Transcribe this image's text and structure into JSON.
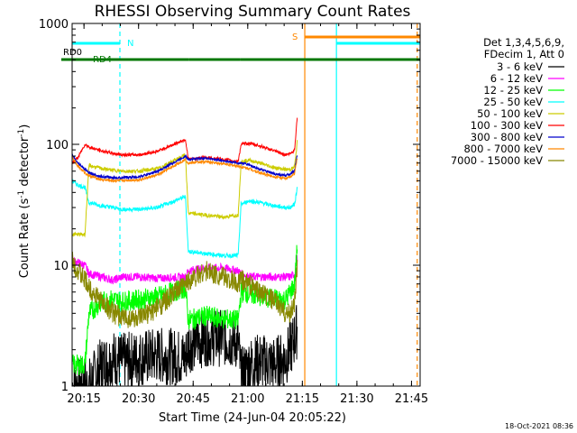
{
  "chart_data": {
    "type": "line",
    "title": "RHESSI Observing Summary Count Rates",
    "xlabel": "Start Time (24-Jun-04 20:05:22)",
    "ylabel": "Count Rate (s⁻¹ detector⁻¹)",
    "ylabel_parts": [
      "Count Rate (s",
      "-1",
      " detector",
      "-1",
      ")"
    ],
    "yscale": "log",
    "ylim": [
      1,
      1000
    ],
    "xlim_min": [
      6.37,
      102.0
    ],
    "x_unit": "minutes after 20:05:22",
    "xticks": [
      {
        "label": "20:15",
        "min": 9.63
      },
      {
        "label": "20:30",
        "min": 24.63
      },
      {
        "label": "20:45",
        "min": 39.63
      },
      {
        "label": "21:00",
        "min": 54.63
      },
      {
        "label": "21:15",
        "min": 69.63
      },
      {
        "label": "21:30",
        "min": 84.63
      },
      {
        "label": "21:45",
        "min": 99.63
      }
    ],
    "yticks": [
      {
        "label": "1",
        "value": 1
      },
      {
        "label": "10",
        "value": 10
      },
      {
        "label": "100",
        "value": 100
      },
      {
        "label": "1000",
        "value": 1000
      }
    ],
    "legend_header": [
      "Det 1,3,4,5,6,9,",
      "FDecim 1, Att 0"
    ],
    "legend_position": "right",
    "series": [
      {
        "name": "3 - 6 keV",
        "color": "#000000",
        "x": [
          6.4,
          8.0,
          9.9,
          11.0,
          14.5,
          17.8,
          20.0,
          25.0,
          30.0,
          37.5,
          38.3,
          43.0,
          48.0,
          52.0,
          52.8,
          55.0,
          58.0,
          62.0,
          65.0,
          66.3,
          67.5,
          68.3
        ],
        "y": [
          1.0,
          1.0,
          1.0,
          1.0,
          1.5,
          1.7,
          1.6,
          1.7,
          1.8,
          1.7,
          2.2,
          2.5,
          2.5,
          2.3,
          1.2,
          1.5,
          1.6,
          1.5,
          1.7,
          2.0,
          2.5,
          3.0
        ]
      },
      {
        "name": "6 - 12 keV",
        "color": "#ff00ff",
        "x": [
          6.4,
          8.0,
          9.9,
          11.0,
          14.5,
          17.8,
          20.0,
          25.0,
          30.0,
          37.5,
          38.3,
          43.0,
          48.0,
          52.0,
          52.8,
          55.0,
          58.0,
          62.0,
          65.0,
          66.3,
          67.5,
          68.3
        ],
        "y": [
          11.0,
          10.5,
          10.0,
          8.5,
          8.0,
          7.5,
          8.0,
          8.0,
          7.8,
          8.0,
          9.0,
          9.5,
          9.5,
          9.0,
          8.5,
          8.0,
          8.0,
          8.0,
          8.0,
          8.0,
          8.5,
          12.0
        ]
      },
      {
        "name": "12 - 25 keV",
        "color": "#00ff00",
        "x": [
          6.4,
          8.0,
          9.9,
          11.0,
          14.5,
          17.8,
          20.0,
          25.0,
          30.0,
          37.5,
          38.3,
          43.0,
          48.0,
          52.0,
          52.8,
          55.0,
          58.0,
          62.0,
          65.0,
          66.3,
          67.5,
          68.3
        ],
        "y": [
          1.5,
          1.5,
          1.5,
          4.0,
          5.0,
          5.2,
          5.0,
          5.2,
          5.5,
          6.5,
          3.5,
          3.8,
          3.6,
          3.5,
          6.0,
          5.8,
          5.5,
          5.3,
          5.2,
          6.0,
          7.0,
          15.0
        ]
      },
      {
        "name": "25 - 50 keV",
        "color": "#00ffff",
        "x": [
          6.4,
          8.0,
          9.9,
          11.0,
          14.5,
          17.8,
          20.0,
          25.0,
          30.0,
          37.5,
          38.3,
          43.0,
          48.0,
          52.0,
          52.8,
          55.0,
          58.0,
          62.0,
          65.0,
          66.3,
          67.5,
          68.3
        ],
        "y": [
          50.0,
          46.0,
          44.0,
          33.0,
          31.0,
          30.0,
          29.0,
          29.0,
          30.0,
          37.0,
          13.0,
          12.5,
          12.0,
          12.0,
          32.0,
          34.0,
          33.0,
          31.0,
          30.0,
          30.0,
          32.0,
          45.0
        ]
      },
      {
        "name": "50 - 100 keV",
        "color": "#cccc00",
        "x": [
          6.4,
          8.0,
          9.9,
          11.0,
          14.5,
          17.8,
          20.0,
          25.0,
          30.0,
          37.5,
          38.3,
          43.0,
          48.0,
          52.0,
          52.8,
          55.0,
          58.0,
          62.0,
          65.0,
          66.3,
          67.5,
          68.3
        ],
        "y": [
          18.0,
          18.0,
          18.0,
          67.0,
          63.0,
          61.0,
          60.0,
          60.0,
          63.0,
          82.0,
          27.0,
          26.0,
          25.0,
          26.0,
          72.0,
          74.0,
          70.0,
          64.0,
          62.0,
          62.0,
          65.0,
          110.0
        ]
      },
      {
        "name": "100 - 300 keV",
        "color": "#ff0000",
        "x": [
          6.4,
          8.0,
          9.9,
          11.0,
          14.5,
          17.8,
          20.0,
          25.0,
          30.0,
          37.5,
          38.3,
          43.0,
          48.0,
          52.0,
          52.8,
          55.0,
          58.0,
          62.0,
          65.0,
          66.3,
          67.5,
          68.3
        ],
        "y": [
          70.0,
          78.0,
          100.0,
          95.0,
          88.0,
          84.0,
          82.0,
          82.0,
          88.0,
          110.0,
          75.0,
          78.0,
          75.0,
          72.0,
          100.0,
          102.0,
          97.0,
          88.0,
          82.0,
          84.0,
          90.0,
          180.0
        ]
      },
      {
        "name": "300 - 800 keV",
        "color": "#0000cc",
        "x": [
          6.4,
          8.0,
          9.9,
          11.0,
          14.5,
          17.8,
          20.0,
          25.0,
          30.0,
          37.5,
          38.3,
          43.0,
          48.0,
          52.0,
          52.8,
          55.0,
          58.0,
          62.0,
          65.0,
          66.3,
          67.5,
          68.3
        ],
        "y": [
          82.0,
          70.0,
          62.0,
          58.0,
          54.0,
          53.0,
          53.0,
          54.0,
          60.0,
          80.0,
          75.0,
          77.0,
          73.0,
          70.0,
          70.0,
          68.0,
          62.0,
          57.0,
          55.0,
          57.0,
          60.0,
          85.0
        ]
      },
      {
        "name": "800 - 7000 keV",
        "color": "#ff8800",
        "x": [
          6.4,
          8.0,
          9.9,
          11.0,
          14.5,
          17.8,
          20.0,
          25.0,
          30.0,
          37.5,
          38.3,
          43.0,
          48.0,
          52.0,
          52.8,
          55.0,
          58.0,
          62.0,
          65.0,
          66.3,
          67.5,
          68.3
        ],
        "y": [
          78.0,
          66.0,
          58.0,
          55.0,
          51.0,
          50.0,
          50.0,
          51.0,
          56.0,
          75.0,
          70.0,
          72.0,
          69.0,
          66.0,
          65.0,
          63.0,
          58.0,
          54.0,
          52.0,
          54.0,
          57.0,
          80.0
        ]
      },
      {
        "name": "7000 - 15000 keV",
        "color": "#888800",
        "x": [
          6.4,
          8.0,
          9.9,
          11.0,
          14.5,
          17.8,
          20.0,
          25.0,
          30.0,
          37.5,
          38.3,
          43.0,
          48.0,
          52.0,
          52.8,
          55.0,
          58.0,
          62.0,
          65.0,
          66.3,
          67.5,
          68.3
        ],
        "y": [
          11.0,
          9.0,
          7.5,
          6.5,
          5.0,
          4.0,
          3.7,
          3.6,
          4.5,
          7.0,
          7.5,
          9.0,
          8.0,
          7.0,
          7.5,
          7.0,
          6.0,
          5.0,
          4.0,
          4.0,
          5.0,
          10.0
        ]
      }
    ],
    "flags": [
      {
        "label": "RD0",
        "color": "#000000",
        "segments": [
          [
            6.4,
            102.0
          ]
        ]
      },
      {
        "label": "RD4",
        "color": "#007700",
        "segments": [
          [
            6.4,
            38.5
          ],
          [
            38.5,
            52.6
          ],
          [
            52.6,
            102.0
          ]
        ]
      },
      {
        "label": "N",
        "color": "#00ffff",
        "segments": [
          [
            6.4,
            19.5
          ],
          [
            79.0,
            102.0
          ]
        ]
      },
      {
        "label": "S",
        "color": "#ff8800",
        "segments": [
          [
            70.3,
            102.0
          ]
        ]
      }
    ],
    "vlines": [
      {
        "min": 19.5,
        "color": "#00ffff",
        "style": "dashed"
      },
      {
        "min": 70.3,
        "color": "#ff8800",
        "style": "solid"
      },
      {
        "min": 79.0,
        "color": "#00ffff",
        "style": "solid"
      },
      {
        "min": 101.2,
        "color": "#ff8800",
        "style": "dashed"
      }
    ],
    "grid": false
  },
  "footer": {
    "timestamp": "18-Oct-2021 08:36"
  }
}
